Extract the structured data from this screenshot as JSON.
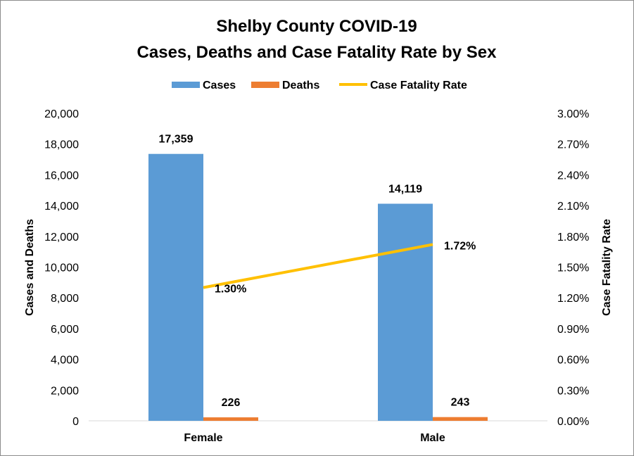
{
  "chart_data": {
    "type": "bar",
    "title": [
      "Shelby County COVID-19",
      "Cases, Deaths and Case Fatality Rate by Sex"
    ],
    "categories": [
      "Female",
      "Male"
    ],
    "series": [
      {
        "name": "Cases",
        "kind": "bar",
        "axis": "left",
        "values": [
          17359,
          14119
        ],
        "labels": [
          "17,359",
          "14,119"
        ],
        "color": "#5B9BD5"
      },
      {
        "name": "Deaths",
        "kind": "bar",
        "axis": "left",
        "values": [
          226,
          243
        ],
        "labels": [
          "226",
          "243"
        ],
        "color": "#ED7D31"
      },
      {
        "name": "Case Fatality Rate",
        "kind": "line",
        "axis": "right",
        "values": [
          1.3,
          1.72
        ],
        "labels": [
          "1.30%",
          "1.72%"
        ],
        "color": "#FFC000"
      }
    ],
    "ylabel": "Cases and Deaths",
    "y2label": "Case Fatality Rate",
    "ylim": [
      0,
      20000
    ],
    "y2lim": [
      0,
      3.0
    ],
    "yticks": [
      "0",
      "2,000",
      "4,000",
      "6,000",
      "8,000",
      "10,000",
      "12,000",
      "14,000",
      "16,000",
      "18,000",
      "20,000"
    ],
    "y2ticks": [
      "0.00%",
      "0.30%",
      "0.60%",
      "0.90%",
      "1.20%",
      "1.50%",
      "1.80%",
      "2.10%",
      "2.40%",
      "2.70%",
      "3.00%"
    ],
    "grid": false,
    "legend_position": "top"
  }
}
